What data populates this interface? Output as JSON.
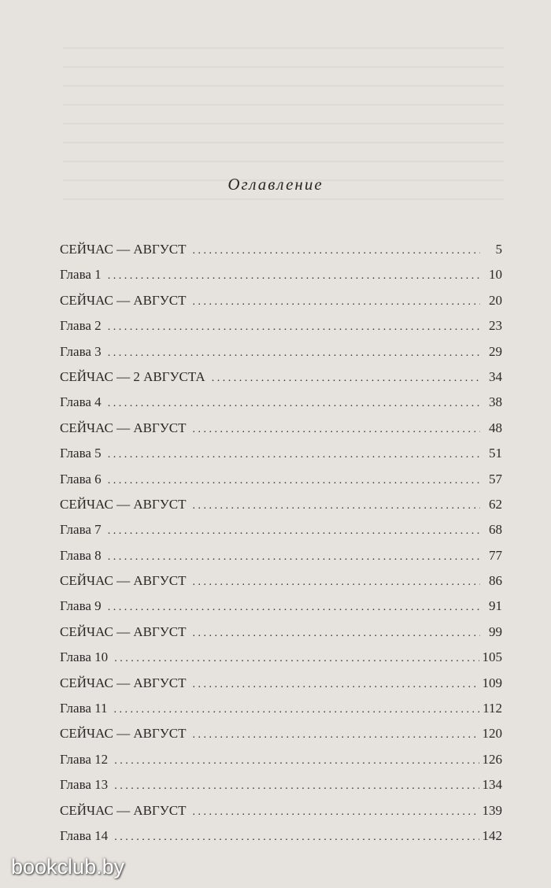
{
  "title": "Оглавление",
  "entries": [
    {
      "label": "СЕЙЧАС — АВГУСТ",
      "page": "5"
    },
    {
      "label": "Глава  1",
      "page": "10"
    },
    {
      "label": "СЕЙЧАС — АВГУСТ",
      "page": "20"
    },
    {
      "label": "Глава  2",
      "page": "23"
    },
    {
      "label": "Глава  3",
      "page": "29"
    },
    {
      "label": "СЕЙЧАС — 2 АВГУСТА",
      "page": "34"
    },
    {
      "label": "Глава  4",
      "page": "38"
    },
    {
      "label": "СЕЙЧАС — АВГУСТ",
      "page": "48"
    },
    {
      "label": "Глава  5",
      "page": "51"
    },
    {
      "label": "Глава  6",
      "page": "57"
    },
    {
      "label": "СЕЙЧАС — АВГУСТ",
      "page": "62"
    },
    {
      "label": "Глава  7",
      "page": "68"
    },
    {
      "label": "Глава  8",
      "page": "77"
    },
    {
      "label": "СЕЙЧАС — АВГУСТ",
      "page": "86"
    },
    {
      "label": "Глава  9",
      "page": "91"
    },
    {
      "label": "СЕЙЧАС — АВГУСТ",
      "page": "99"
    },
    {
      "label": "Глава 10",
      "page": "105"
    },
    {
      "label": "СЕЙЧАС — АВГУСТ",
      "page": "109"
    },
    {
      "label": "Глава 11",
      "page": "112"
    },
    {
      "label": "СЕЙЧАС — АВГУСТ",
      "page": "120"
    },
    {
      "label": "Глава 12",
      "page": "126"
    },
    {
      "label": "Глава 13",
      "page": "134"
    },
    {
      "label": "СЕЙЧАС — АВГУСТ",
      "page": "139"
    },
    {
      "label": "Глава 14",
      "page": "142"
    }
  ],
  "watermark": "bookclub.by"
}
